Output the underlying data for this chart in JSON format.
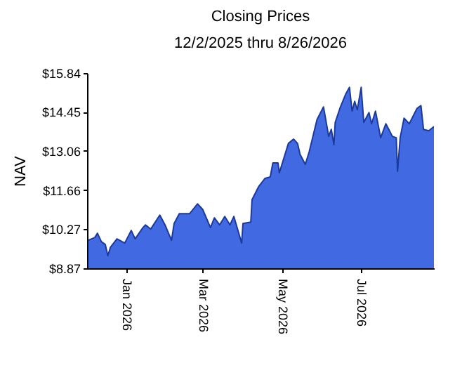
{
  "chart_data": {
    "type": "area",
    "title": "Closing Prices",
    "subtitle": "12/2/2025 thru 8/26/2026",
    "ylabel": "NAV",
    "x": [
      "2025-12-03",
      "2025-12-08",
      "2025-12-10",
      "2025-12-13",
      "2025-12-16",
      "2025-12-18",
      "2025-12-20",
      "2025-12-25",
      "2025-12-31",
      "2026-01-05",
      "2026-01-08",
      "2026-01-14",
      "2026-01-16",
      "2026-01-20",
      "2026-01-27",
      "2026-01-31",
      "2026-02-05",
      "2026-02-07",
      "2026-02-11",
      "2026-02-19",
      "2026-02-25",
      "2026-03-01",
      "2026-03-07",
      "2026-03-10",
      "2026-03-14",
      "2026-03-18",
      "2026-03-22",
      "2026-03-25",
      "2026-03-31",
      "2026-04-01",
      "2026-04-07",
      "2026-04-08",
      "2026-04-13",
      "2026-04-18",
      "2026-04-22",
      "2026-04-24",
      "2026-04-28",
      "2026-04-29",
      "2026-05-06",
      "2026-05-10",
      "2026-05-13",
      "2026-05-15",
      "2026-05-19",
      "2026-05-22",
      "2026-05-28",
      "2026-06-02",
      "2026-06-06",
      "2026-06-08",
      "2026-06-10",
      "2026-06-11",
      "2026-06-15",
      "2026-06-19",
      "2026-06-22",
      "2026-06-24",
      "2026-06-26",
      "2026-06-28",
      "2026-07-01",
      "2026-07-03",
      "2026-07-07",
      "2026-07-09",
      "2026-07-12",
      "2026-07-16",
      "2026-07-20",
      "2026-07-25",
      "2026-07-28",
      "2026-07-29",
      "2026-07-31",
      "2026-08-03",
      "2026-08-07",
      "2026-08-13",
      "2026-08-16",
      "2026-08-18",
      "2026-08-22",
      "2026-08-26"
    ],
    "series": [
      {
        "color": "#4169e1",
        "values": [
          9.87,
          9.97,
          10.12,
          9.82,
          9.72,
          9.32,
          9.62,
          9.92,
          9.77,
          10.22,
          9.92,
          10.32,
          10.42,
          10.27,
          10.77,
          10.42,
          9.87,
          10.47,
          10.82,
          10.82,
          11.17,
          10.97,
          10.32,
          10.67,
          10.42,
          10.72,
          10.42,
          10.72,
          9.77,
          10.47,
          10.52,
          11.32,
          11.78,
          12.08,
          12.13,
          12.63,
          12.63,
          12.28,
          13.33,
          13.48,
          13.33,
          12.93,
          12.58,
          13.03,
          14.18,
          14.63,
          13.58,
          13.83,
          13.28,
          14.08,
          14.63,
          15.08,
          15.33,
          14.48,
          14.83,
          14.53,
          15.33,
          14.08,
          14.43,
          14.03,
          14.48,
          13.53,
          14.03,
          13.58,
          13.53,
          12.33,
          13.53,
          14.23,
          14.03,
          14.58,
          14.68,
          13.83,
          13.78,
          13.93
        ]
      }
    ],
    "xlim": [
      "2025-12-02",
      "2026-08-26"
    ],
    "xticks": [
      {
        "value": "2026-01-01",
        "label": "Jan  2026"
      },
      {
        "value": "2026-03-01",
        "label": "Mar  2026"
      },
      {
        "value": "2026-05-01",
        "label": "May  2026"
      },
      {
        "value": "2026-07-01",
        "label": "Jul  2026"
      }
    ],
    "ylim": [
      8.87,
      15.84
    ],
    "yticks": [
      {
        "value": 8.87,
        "label": "$8.87"
      },
      {
        "value": 10.27,
        "label": "$10.27"
      },
      {
        "value": 11.66,
        "label": "$11.66"
      },
      {
        "value": 13.06,
        "label": "$13.06"
      },
      {
        "value": 14.45,
        "label": "$14.45"
      },
      {
        "value": 15.84,
        "label": "$15.84"
      }
    ],
    "grid": false
  }
}
